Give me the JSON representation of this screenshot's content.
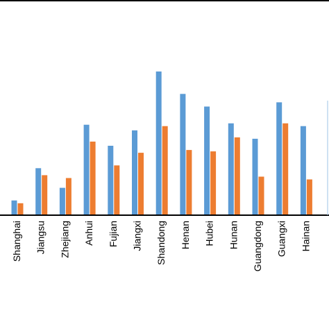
{
  "chart_data": {
    "type": "bar",
    "categories": [
      "Shanghai",
      "Jiangsu",
      "Zhejiang",
      "Anhui",
      "Fujian",
      "Jiangxi",
      "Shandong",
      "Henan",
      "Hubei",
      "Hunan",
      "Guangdong",
      "Guangxi",
      "Hainan"
    ],
    "series": [
      {
        "color": "#5B9BD5",
        "values": [
          10,
          33,
          19,
          64,
          49,
          60,
          102,
          86,
          77,
          65,
          54,
          80,
          63
        ]
      },
      {
        "color": "#ED7D31",
        "values": [
          8,
          28,
          26,
          52,
          35,
          44,
          63,
          46,
          45,
          55,
          27,
          65,
          25
        ]
      }
    ],
    "ylim": [
      0,
      150
    ],
    "grid": false,
    "legend": "none"
  }
}
